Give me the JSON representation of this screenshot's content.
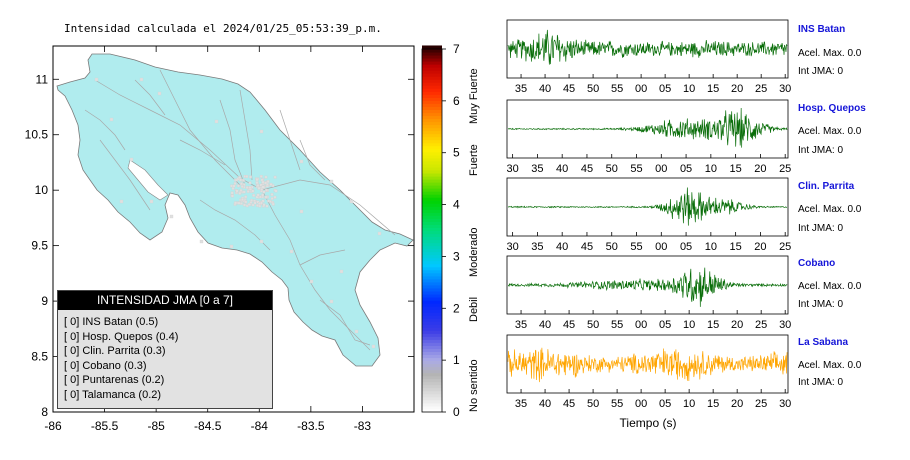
{
  "header": {
    "title": "Intensidad calculada el 2024/01/25_05:53:39_p.m."
  },
  "map": {
    "x_ticks": [
      "-86",
      "-85.5",
      "-85",
      "-84.5",
      "-84",
      "-83.5",
      "-83"
    ],
    "y_ticks": [
      "11",
      "10.5",
      "10",
      "9.5",
      "9",
      "8.5",
      "8"
    ],
    "land_color": "#b0ecee"
  },
  "legend": {
    "title": "INTENSIDAD JMA [0 a 7]",
    "items": [
      {
        "bracket": "[ 0]",
        "label": "INS Batan (0.5)"
      },
      {
        "bracket": "[ 0]",
        "label": "Hosp. Quepos (0.4)"
      },
      {
        "bracket": "[ 0]",
        "label": "Clin. Parrita (0.3)"
      },
      {
        "bracket": "[ 0]",
        "label": "Cobano (0.3)"
      },
      {
        "bracket": "[ 0]",
        "label": "Puntarenas (0.2)"
      },
      {
        "bracket": "[ 0]",
        "label": "Talamanca (0.2)"
      }
    ]
  },
  "colorbar": {
    "ticks": [
      "0",
      "1",
      "2",
      "3",
      "4",
      "5",
      "6",
      "7"
    ],
    "labels": [
      "No sentido",
      "Debil",
      "Moderado",
      "Fuerte",
      "Muy Fuerte"
    ]
  },
  "stations": [
    {
      "name": "INS Batan",
      "acel": "Acel. Max. 0.0",
      "int": "Int JMA: 0",
      "color": "#0a6e0a",
      "ticks": [
        "35",
        "40",
        "45",
        "50",
        "55",
        "00",
        "05",
        "10",
        "15",
        "20",
        "25",
        "30"
      ]
    },
    {
      "name": "Hosp. Quepos",
      "acel": "Acel. Max. 0.0",
      "int": "Int JMA: 0",
      "color": "#0a6e0a",
      "ticks": [
        "30",
        "35",
        "40",
        "45",
        "50",
        "55",
        "00",
        "05",
        "10",
        "15",
        "20",
        "25"
      ]
    },
    {
      "name": "Clin. Parrita",
      "acel": "Acel. Max. 0.0",
      "int": "Int JMA: 0",
      "color": "#0a6e0a",
      "ticks": [
        "30",
        "35",
        "40",
        "45",
        "50",
        "55",
        "00",
        "05",
        "10",
        "15",
        "20",
        "25"
      ]
    },
    {
      "name": "Cobano",
      "acel": "Acel. Max. 0.0",
      "int": "Int JMA: 0",
      "color": "#0a6e0a",
      "ticks": [
        "35",
        "40",
        "45",
        "50",
        "55",
        "00",
        "05",
        "10",
        "15",
        "20",
        "25",
        "30"
      ]
    },
    {
      "name": "La Sabana",
      "acel": "Acel. Max. 0.0",
      "int": "Int JMA: 0",
      "color": "#ffa500",
      "ticks": [
        "35",
        "40",
        "45",
        "50",
        "55",
        "00",
        "05",
        "10",
        "15",
        "20",
        "25",
        "30"
      ]
    }
  ],
  "xaxis_label": "Tiempo (s)",
  "chart_data": [
    {
      "type": "scatter",
      "title": "Intensidad calculada el 2024/01/25_05:53:39_p.m.",
      "xlabel": "",
      "ylabel": "",
      "xlim": [
        -86,
        -82.5
      ],
      "ylim": [
        8,
        11.3
      ],
      "legend": "bottom-left",
      "series": [
        {
          "name": "INS Batan",
          "intensity": 0.5
        },
        {
          "name": "Hosp. Quepos",
          "intensity": 0.4
        },
        {
          "name": "Clin. Parrita",
          "intensity": 0.3
        },
        {
          "name": "Cobano",
          "intensity": 0.3
        },
        {
          "name": "Puntarenas",
          "intensity": 0.2
        },
        {
          "name": "Talamanca",
          "intensity": 0.2
        }
      ]
    },
    {
      "type": "line",
      "xlabel": "Tiempo (s)",
      "series": [
        {
          "name": "INS Batan",
          "acel_max": 0.0,
          "int_jma": 0
        },
        {
          "name": "Hosp. Quepos",
          "acel_max": 0.0,
          "int_jma": 0
        },
        {
          "name": "Clin. Parrita",
          "acel_max": 0.0,
          "int_jma": 0
        },
        {
          "name": "Cobano",
          "acel_max": 0.0,
          "int_jma": 0
        },
        {
          "name": "La Sabana",
          "acel_max": 0.0,
          "int_jma": 0
        }
      ]
    }
  ]
}
